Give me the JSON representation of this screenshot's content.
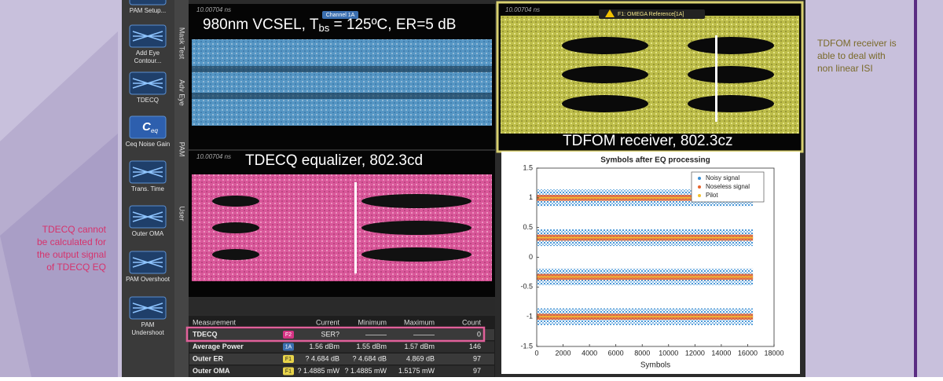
{
  "annotations": {
    "left": [
      "TDECQ cannot",
      "be calculated for",
      "the output signal",
      "of TDECQ EQ"
    ],
    "right": [
      "TDFOM receiver is",
      "able to deal with",
      "non linear ISI"
    ]
  },
  "toolbar": {
    "buttons": [
      {
        "label": [
          "PAM Setup..."
        ]
      },
      {
        "label": [
          "Add Eye",
          "Contour..."
        ]
      },
      {
        "label": [
          "TDECQ"
        ]
      },
      {
        "label": [
          "Ceq Noise Gain"
        ],
        "icon_text": "C",
        "icon_sub": "eq"
      },
      {
        "label": [
          "Trans. Time"
        ]
      },
      {
        "label": [
          "Outer OMA"
        ]
      },
      {
        "label": [
          "PAM Overshoot"
        ]
      },
      {
        "label": [
          "PAM",
          "Undershoot"
        ]
      }
    ],
    "tabs": [
      "Mask Test",
      "Adv Eye",
      "PAM",
      "User"
    ]
  },
  "panels": {
    "blue": {
      "time": "10.00704 ns",
      "channel": "Channel 1A",
      "caption": {
        "before": "980nm VCSEL, T",
        "sub": "bs",
        "after": " = 125ºC, ER=5 dB"
      }
    },
    "pink": {
      "time": "10.00704 ns",
      "caption": "TDECQ equalizer, 802.3cd"
    },
    "yellow": {
      "time": "10.00704 ns",
      "warning": "F1: OMEGA Reference[1A]",
      "caption": "TDFOM receiver, 802.3cz"
    }
  },
  "table": {
    "header": [
      "Measurement",
      "Current",
      "Minimum",
      "Maximum",
      "Count"
    ],
    "rows": [
      {
        "name": "TDECQ",
        "source": "F2",
        "cells": [
          "SER?",
          "———",
          "———",
          "0"
        ]
      },
      {
        "name": "Average Power",
        "source": "1A",
        "cells": [
          "1.56 dBm",
          "1.55 dBm",
          "1.57 dBm",
          "146"
        ]
      },
      {
        "name": "Outer ER",
        "source": "F1",
        "cells": [
          "? 4.684 dB",
          "? 4.684 dB",
          "4.869 dB",
          "97"
        ]
      },
      {
        "name": "Outer OMA",
        "source": "F1",
        "cells": [
          "? 1.4885 mW",
          "? 1.4885 mW",
          "1.5175 mW",
          "97"
        ]
      }
    ]
  },
  "plot": {
    "title": "Symbols after EQ processing",
    "xlabel": "Symbols",
    "xlim": [
      0,
      18000
    ],
    "xticks": [
      0,
      2000,
      4000,
      6000,
      8000,
      10000,
      12000,
      14000,
      16000,
      18000
    ],
    "ylim": [
      -1.5,
      1.5
    ],
    "yticks": [
      -1.5,
      -1,
      -0.5,
      0,
      0.5,
      1,
      1.5
    ],
    "data_x_range": [
      0,
      16400
    ],
    "levels": [
      1,
      0.33,
      -0.33,
      -1
    ],
    "series": [
      {
        "name": "Noisy signal",
        "color": "#3b8fd4",
        "spread": 0.14
      },
      {
        "name": "Noseless signal",
        "color": "#e8622a",
        "spread": 0.05
      },
      {
        "name": "Pilot",
        "color": "#f2c230",
        "spread": 0.01
      }
    ]
  }
}
